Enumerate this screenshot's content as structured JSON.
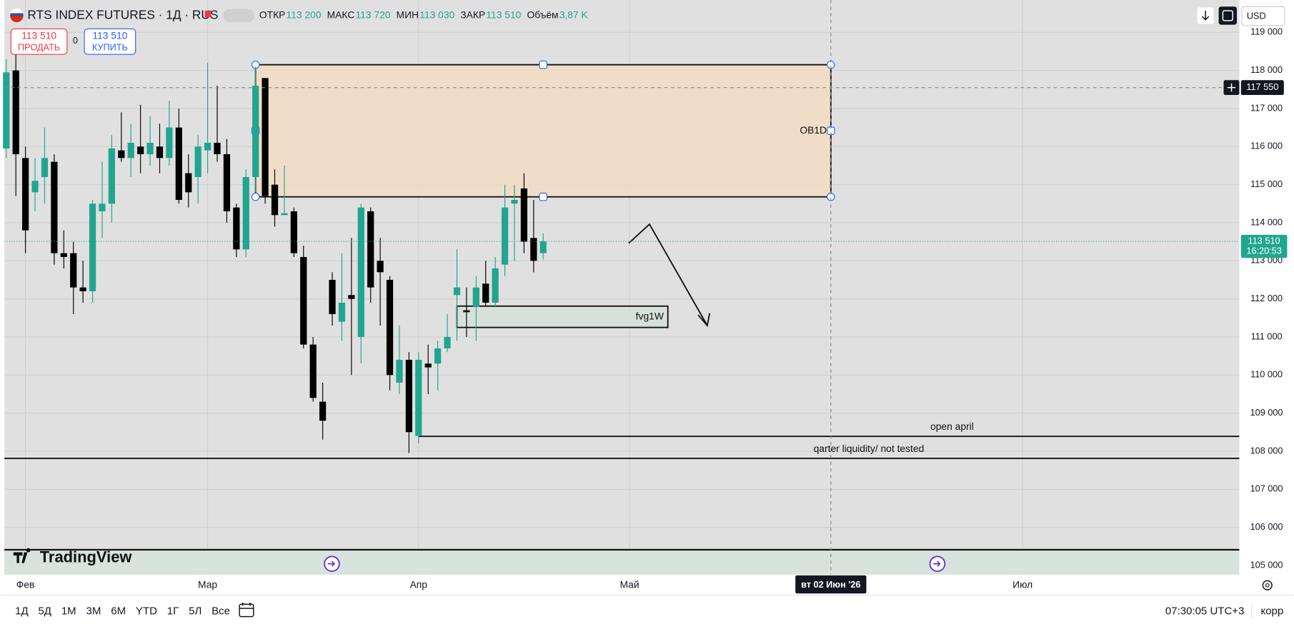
{
  "header": {
    "symbol": "RTS INDEX FUTURES · 1Д · RUS",
    "ohlc": [
      {
        "label": "ОТКР",
        "value": "113 200"
      },
      {
        "label": "МАКС",
        "value": "113 720"
      },
      {
        "label": "МИН",
        "value": "113 030"
      },
      {
        "label": "ЗАКР",
        "value": "113 510"
      },
      {
        "label": "Объём",
        "value": "3,87 K"
      }
    ],
    "currency": "USD"
  },
  "trade": {
    "sell": {
      "price": "113 510",
      "label": "ПРОДАТЬ"
    },
    "spread": "0",
    "buy": {
      "price": "113 510",
      "label": "КУПИТЬ"
    }
  },
  "logo": "TradingView",
  "toolbar": {
    "ranges": [
      "1Д",
      "5Д",
      "1М",
      "3М",
      "6М",
      "YTD",
      "1Г",
      "5Л",
      "Все"
    ],
    "clock": "07:30:05 UTC+3",
    "adjust": "корр"
  },
  "chart_data": {
    "type": "candlestick",
    "x": [
      0,
      1,
      2,
      3,
      4,
      5,
      6,
      7,
      8,
      9,
      10,
      11,
      12,
      13,
      14,
      15,
      16,
      17,
      18,
      19,
      20,
      21,
      22,
      23,
      24,
      25,
      26,
      27,
      28,
      29,
      30,
      31,
      32,
      33,
      34,
      35,
      36,
      37,
      38,
      39,
      40,
      41,
      42,
      43,
      44,
      45,
      46,
      47,
      48,
      49,
      50,
      51,
      52,
      53,
      54,
      55,
      56
    ],
    "open": [
      115950,
      118000,
      115700,
      114800,
      115200,
      115600,
      113200,
      113200,
      112300,
      112200,
      114300,
      114500,
      115900,
      115700,
      116000,
      115800,
      116000,
      115700,
      116500,
      115300,
      115200,
      115900,
      116100,
      115800,
      114400,
      113300,
      115200,
      117800,
      115000,
      114200,
      114300,
      113100,
      110800,
      109300,
      112500,
      111400,
      112100,
      111000,
      114300,
      113000,
      112500,
      109800,
      110400,
      108400,
      110300,
      110300,
      110700,
      112100,
      111700,
      111800,
      112400,
      111900,
      112900,
      114500,
      114900,
      113600,
      113200
    ],
    "high": [
      118300,
      118600,
      116000,
      115700,
      116500,
      115800,
      113800,
      113500,
      113000,
      114600,
      115600,
      116300,
      116900,
      116600,
      117100,
      116800,
      116600,
      117200,
      117000,
      115800,
      116300,
      118200,
      117600,
      116200,
      114500,
      115400,
      118100,
      117800,
      115400,
      115500,
      114400,
      113400,
      111000,
      109800,
      112700,
      113200,
      113600,
      114500,
      114400,
      113600,
      112600,
      111300,
      110600,
      110600,
      110800,
      110900,
      111600,
      113300,
      112300,
      112600,
      113000,
      113100,
      115000,
      115000,
      115300,
      114600,
      113720
    ],
    "low": [
      115700,
      114700,
      113200,
      114300,
      114500,
      112900,
      112800,
      111600,
      111900,
      111900,
      113600,
      114000,
      115600,
      115200,
      115300,
      115500,
      115300,
      115500,
      114500,
      114400,
      114500,
      115300,
      115600,
      114000,
      113100,
      113100,
      114800,
      114500,
      113900,
      114200,
      113100,
      110700,
      109300,
      108300,
      111300,
      110900,
      110000,
      110300,
      111900,
      111300,
      109600,
      109500,
      107950,
      108200,
      109500,
      109600,
      110600,
      110900,
      111000,
      110900,
      111800,
      111800,
      112600,
      113000,
      113200,
      112700,
      113030
    ],
    "close": [
      117950,
      115800,
      113800,
      115100,
      115700,
      113200,
      113100,
      112300,
      112200,
      114500,
      114500,
      115950,
      115700,
      116100,
      115800,
      116100,
      115700,
      116500,
      114600,
      114800,
      116000,
      116100,
      115800,
      114300,
      113300,
      115200,
      117600,
      114700,
      114200,
      114250,
      113200,
      110800,
      109400,
      108800,
      111600,
      111900,
      112000,
      114400,
      112300,
      112700,
      110000,
      110400,
      108500,
      110400,
      110200,
      110700,
      111000,
      112300,
      111650,
      112300,
      111900,
      112800,
      114400,
      114600,
      113500,
      113000,
      113510
    ],
    "up_color": "#22a58f",
    "down_color": "#000000",
    "xlim": [
      -0.2,
      128.6
    ],
    "xticks": [
      {
        "value": 2,
        "label": "Фев"
      },
      {
        "value": 21,
        "label": "Мар"
      },
      {
        "value": 43,
        "label": "Апр"
      },
      {
        "value": 65,
        "label": "Май"
      },
      {
        "value": 106,
        "label": "Июл"
      }
    ],
    "ylim": [
      104760,
      119850
    ],
    "yticks": [
      {
        "value": 105000,
        "label": "105 000"
      },
      {
        "value": 106000,
        "label": "106 000"
      },
      {
        "value": 107000,
        "label": "107 000"
      },
      {
        "value": 108000,
        "label": "108 000"
      },
      {
        "value": 109000,
        "label": "109 000"
      },
      {
        "value": 110000,
        "label": "110 000"
      },
      {
        "value": 111000,
        "label": "111 000"
      },
      {
        "value": 112000,
        "label": "112 000"
      },
      {
        "value": 113000,
        "label": "113 000"
      },
      {
        "value": 114000,
        "label": "114 000"
      },
      {
        "value": 115000,
        "label": "115 000"
      },
      {
        "value": 116000,
        "label": "116 000"
      },
      {
        "value": 117000,
        "label": "117 000"
      },
      {
        "value": 118000,
        "label": "118 000"
      },
      {
        "value": 119000,
        "label": "119 000"
      }
    ],
    "grid": true,
    "last": {
      "value": 113510,
      "label": "113 510",
      "countdown": "16:20:53"
    },
    "crosshair": {
      "x": {
        "value": 86,
        "label": "вт 02 Июн '26"
      },
      "y": {
        "value": 117550,
        "label": "117 550"
      }
    },
    "annotations": [
      {
        "type": "box",
        "label": "OB1D",
        "x": [
          26,
          86
        ],
        "y": [
          114680,
          118150
        ],
        "color": "#f3dcc0"
      },
      {
        "type": "box",
        "label": "fvg1W",
        "x": [
          47,
          69
        ],
        "y": [
          111250,
          111810
        ],
        "color": "#d5e0d8"
      },
      {
        "type": "hline",
        "label": "open april",
        "x": [
          43,
          128.6
        ],
        "y": 108390
      },
      {
        "type": "hline",
        "label": "qarter liquidity/ not tested",
        "x": [
          -0.2,
          128.6
        ],
        "y": 107810
      }
    ]
  }
}
